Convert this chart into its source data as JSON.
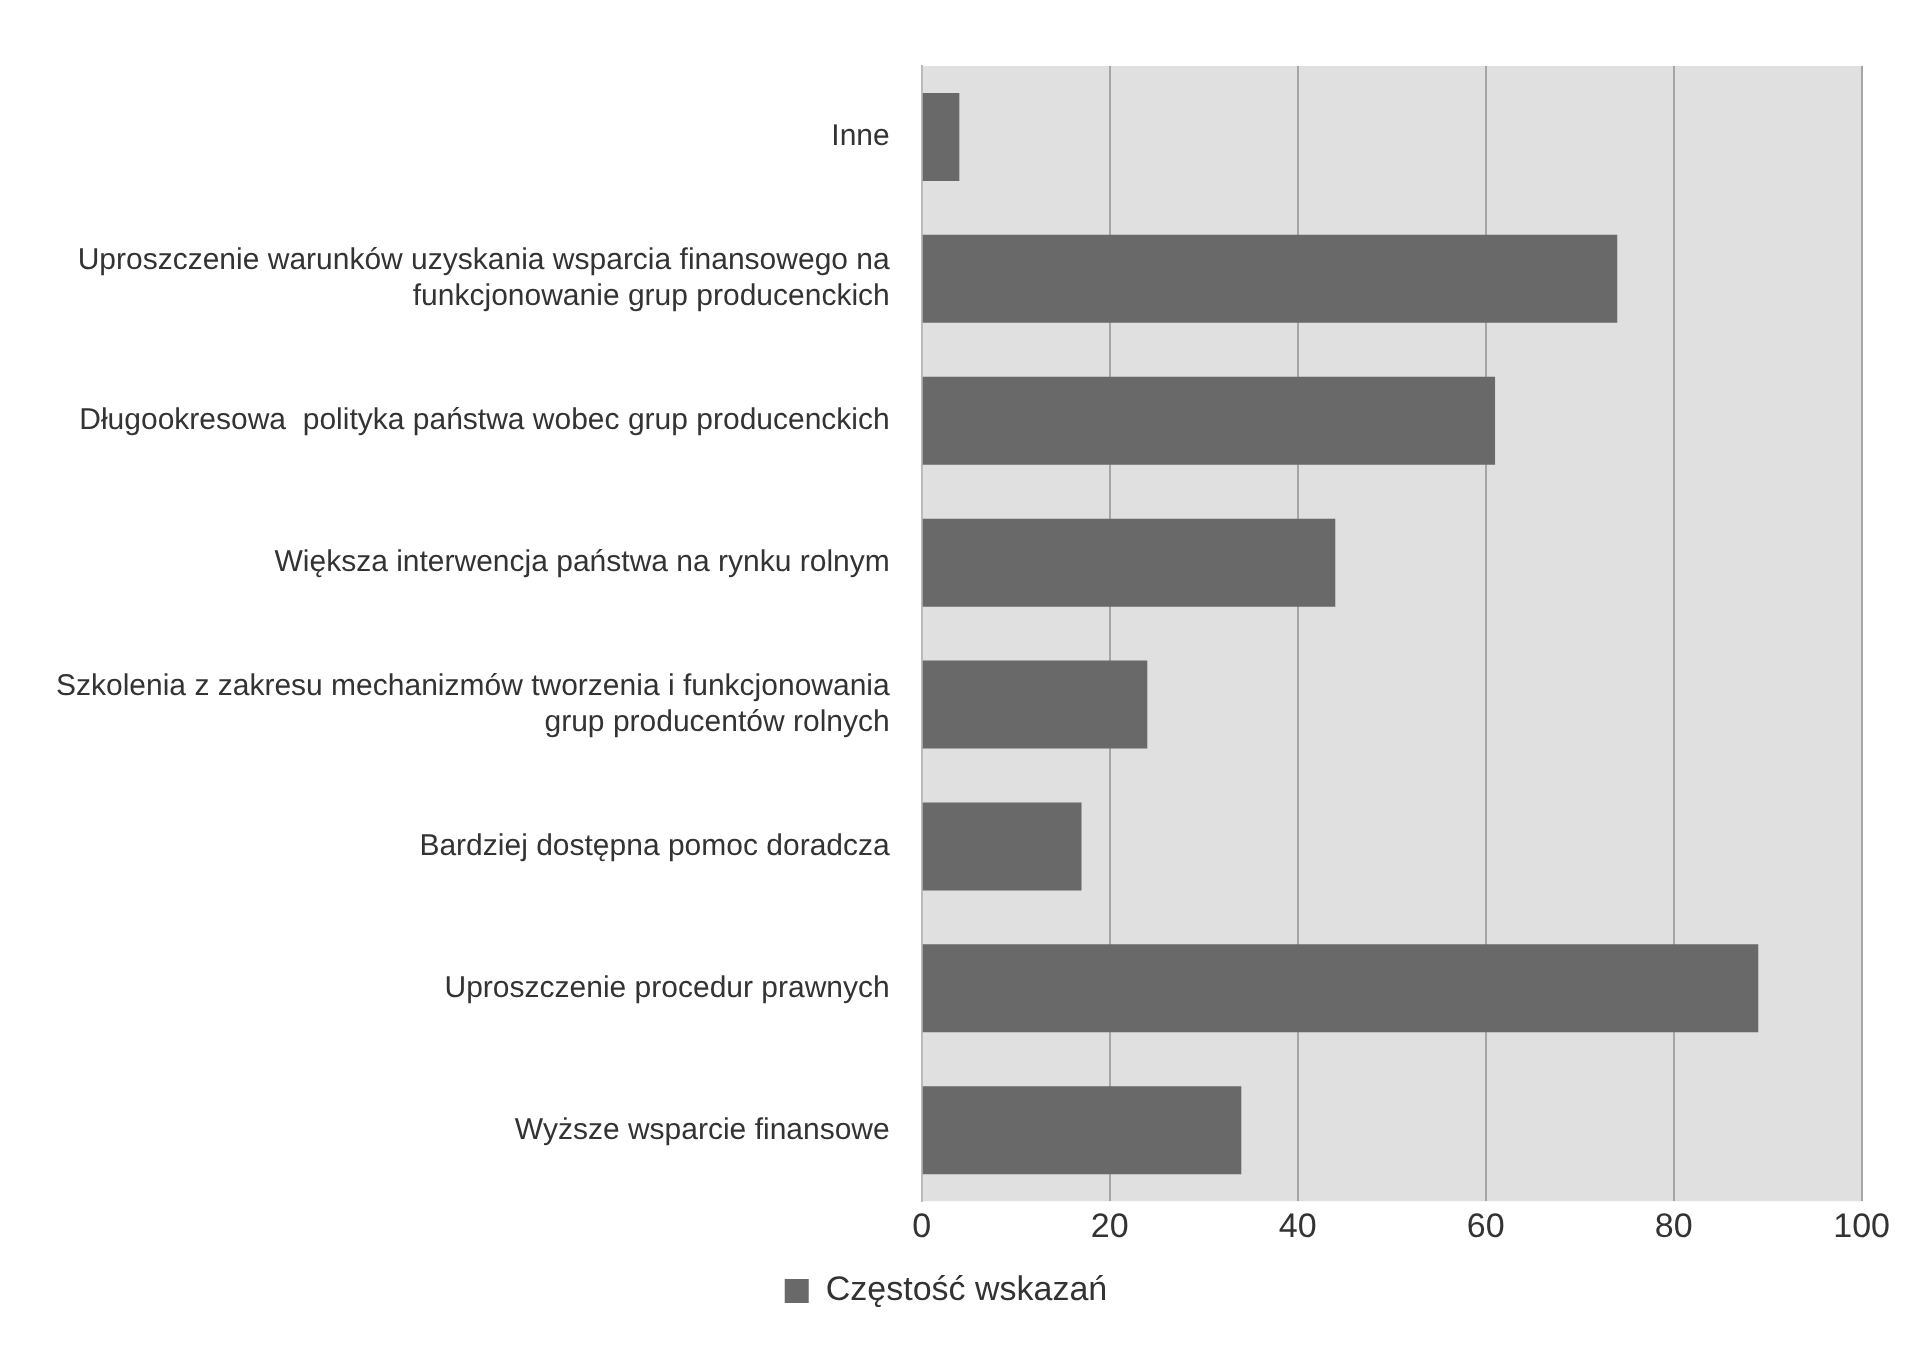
{
  "chart_data": {
    "type": "bar",
    "orientation": "horizontal",
    "categories": [
      "Inne",
      "Uproszczenie warunków uzyskania wsparcia finansowego na funkcjonowanie grup producenckich",
      "Długookresowa  polityka państwa wobec grup producenckich",
      "Większa interwencja państwa na rynku rolnym",
      "Szkolenia z zakresu mechanizmów tworzenia i funkcjonowania grup producentów rolnych",
      "Bardziej dostępna pomoc doradcza",
      "Uproszczenie procedur prawnych",
      "Wyższe wsparcie finansowe"
    ],
    "series": [
      {
        "name": "Częstość wskazań",
        "color": "#696969",
        "values": [
          4,
          74,
          61,
          44,
          24,
          17,
          89,
          34
        ]
      }
    ],
    "xlim": [
      0,
      100
    ],
    "xticks": [
      0,
      20,
      40,
      60,
      80,
      100
    ],
    "grid": "x",
    "legend": "bottom"
  }
}
